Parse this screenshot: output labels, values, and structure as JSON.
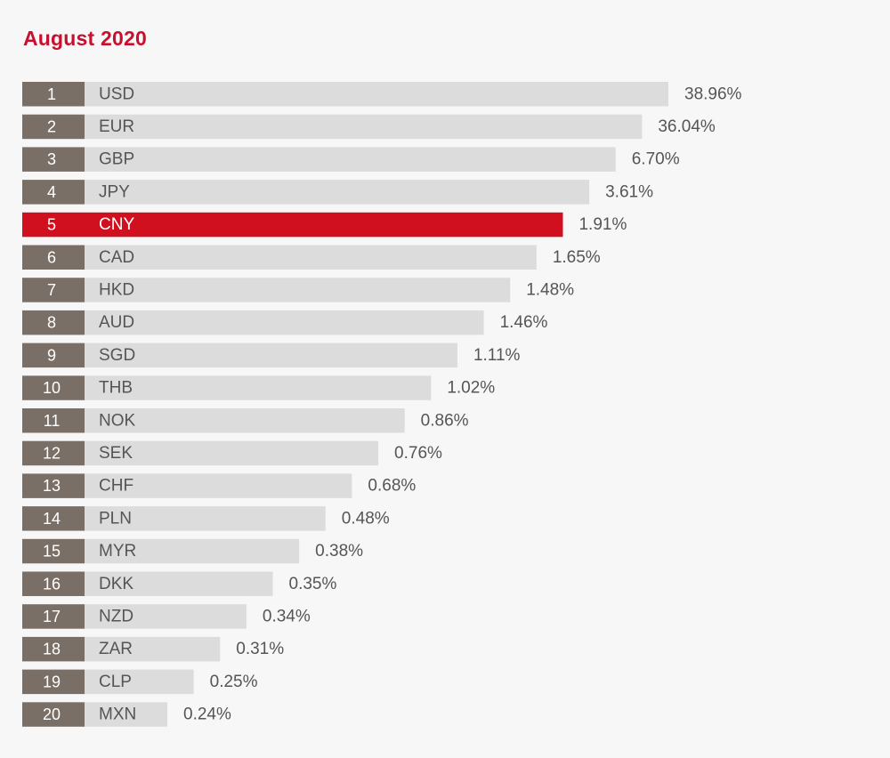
{
  "chart_data": {
    "type": "bar",
    "orientation": "horizontal",
    "title": "August 2020",
    "highlight_category": "CNY",
    "colors": {
      "title": "#c8102e",
      "rank_box": "#7a6f67",
      "bar": "#dcdcdc",
      "highlight": "#d0101e",
      "text": "#555555"
    },
    "ranks": [
      "1",
      "2",
      "3",
      "4",
      "5",
      "6",
      "7",
      "8",
      "9",
      "10",
      "11",
      "12",
      "13",
      "14",
      "15",
      "16",
      "17",
      "18",
      "19",
      "20"
    ],
    "categories": [
      "USD",
      "EUR",
      "GBP",
      "JPY",
      "CNY",
      "CAD",
      "HKD",
      "AUD",
      "SGD",
      "THB",
      "NOK",
      "SEK",
      "CHF",
      "PLN",
      "MYR",
      "DKK",
      "NZD",
      "ZAR",
      "CLP",
      "MXN"
    ],
    "values": [
      38.96,
      36.04,
      6.7,
      3.61,
      1.91,
      1.65,
      1.48,
      1.46,
      1.11,
      1.02,
      0.86,
      0.76,
      0.68,
      0.48,
      0.38,
      0.35,
      0.34,
      0.31,
      0.25,
      0.24
    ],
    "value_labels": [
      "38.96%",
      "36.04%",
      "6.70%",
      "3.61%",
      "1.91%",
      "1.65%",
      "1.48%",
      "1.46%",
      "1.11%",
      "1.02%",
      "0.86%",
      "0.76%",
      "0.68%",
      "0.48%",
      "0.38%",
      "0.35%",
      "0.34%",
      "0.31%",
      "0.25%",
      "0.24%"
    ],
    "xlabel": "",
    "ylabel": "",
    "grid": false
  }
}
